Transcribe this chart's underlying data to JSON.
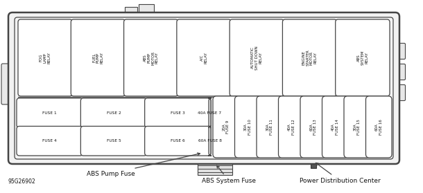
{
  "bg_color": "#ffffff",
  "outline_color": "#444444",
  "text_color": "#111111",
  "part_number": "95G26902",
  "relays": [
    {
      "label": "FOG\nLAMP\nRELAY"
    },
    {
      "label": "FUEL\nPUMP\nRELAY"
    },
    {
      "label": "ABS\nPUMP\nMOTOR\nRELAY"
    },
    {
      "label": "A/C\nRELAY"
    },
    {
      "label": "AUTOMATIC\nSHUT DOWN\nRELAY"
    },
    {
      "label": "ENGINE\nSTARTER\nMOTOR\nRELAY"
    },
    {
      "label": "ABS\nSYSTEM\nRELAY"
    }
  ],
  "small_fuses": [
    {
      "label": "FUSE 1"
    },
    {
      "label": "FUSE 2"
    },
    {
      "label": "FUSE 3"
    },
    {
      "label": "FUSE 4"
    },
    {
      "label": "FUSE 5"
    },
    {
      "label": "FUSE 6"
    }
  ],
  "large_fuses_top": [
    {
      "label": "40A FUSE 7"
    }
  ],
  "large_fuses_bot": [
    {
      "label": "60A FUSE 8"
    }
  ],
  "tall_fuses": [
    {
      "label": "20A\nFUSE 9"
    },
    {
      "label": "30A\nFUSE 10"
    },
    {
      "label": "30A\nFUSE 11"
    },
    {
      "label": "40A\nFUSE 12"
    },
    {
      "label": "60A\nFUSE 13"
    },
    {
      "label": "40A\nFUSE 14"
    },
    {
      "label": "30A\nFUSE 15"
    },
    {
      "label": "60A\nFUSE 16"
    }
  ]
}
